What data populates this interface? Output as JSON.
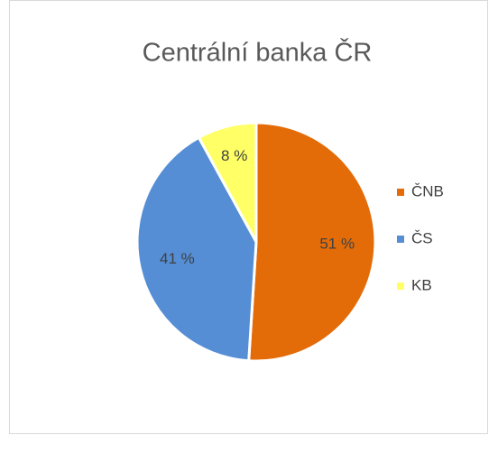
{
  "chart_data": {
    "type": "pie",
    "title": "Centrální banka ČR",
    "categories": [
      "ČNB",
      "ČS",
      "KB"
    ],
    "values": [
      51,
      41,
      8
    ],
    "value_labels": [
      "51 %",
      "41 %",
      "8 %"
    ],
    "colors": [
      "#e36c09",
      "#558ed5",
      "#ffff66"
    ],
    "legend": "right"
  }
}
